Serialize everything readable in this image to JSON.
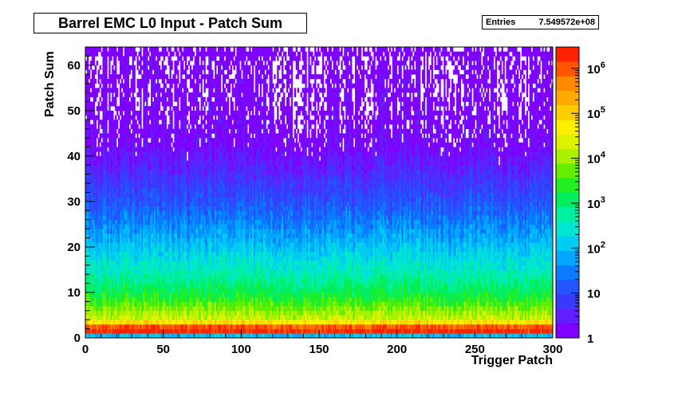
{
  "title": "Barrel EMC L0 Input - Patch Sum",
  "stats": {
    "label": "Entries",
    "value": "7.549572e+08"
  },
  "colors": {
    "palette": [
      "#7f00ff",
      "#5f1fff",
      "#3a3aff",
      "#2255ff",
      "#0a7aff",
      "#00a6ff",
      "#00ccf2",
      "#00e6d0",
      "#00f0a0",
      "#00ee60",
      "#22ee22",
      "#66ee00",
      "#a8f200",
      "#ddf200",
      "#ffee00",
      "#ffcc00",
      "#ffaa00",
      "#ff8800",
      "#ff5500",
      "#ff2200"
    ]
  },
  "chart_data": {
    "type": "heatmap",
    "title": "Barrel EMC L0 Input - Patch Sum",
    "xlabel": "Trigger Patch",
    "ylabel": "Patch Sum",
    "xlim": [
      0,
      300
    ],
    "ylim": [
      0,
      64
    ],
    "x_ticks": [
      0,
      50,
      100,
      150,
      200,
      250,
      300
    ],
    "y_ticks": [
      0,
      10,
      20,
      30,
      40,
      50,
      60
    ],
    "z_scale": "log",
    "zlim": [
      1,
      3000000
    ],
    "z_ticks": [
      1,
      10,
      100,
      1000,
      10000,
      100000,
      1000000
    ],
    "z_tick_labels": [
      "1",
      "10",
      "10^2",
      "10^3",
      "10^4",
      "10^5",
      "10^6"
    ],
    "profile_log10_counts_by_patch_sum": [
      {
        "y": 0,
        "log10": 2.0
      },
      {
        "y": 1,
        "log10": 6.3
      },
      {
        "y": 2,
        "log10": 6.0
      },
      {
        "y": 3,
        "log10": 4.8
      },
      {
        "y": 4,
        "log10": 4.2
      },
      {
        "y": 6,
        "log10": 3.8
      },
      {
        "y": 8,
        "log10": 3.4
      },
      {
        "y": 10,
        "log10": 3.1
      },
      {
        "y": 14,
        "log10": 2.6
      },
      {
        "y": 18,
        "log10": 2.2
      },
      {
        "y": 22,
        "log10": 1.8
      },
      {
        "y": 26,
        "log10": 1.4
      },
      {
        "y": 30,
        "log10": 1.05
      },
      {
        "y": 34,
        "log10": 0.75
      },
      {
        "y": 38,
        "log10": 0.45
      },
      {
        "y": 42,
        "log10": 0.2
      },
      {
        "y": 50,
        "log10": 0.05
      },
      {
        "y": 62,
        "log10": 0.0
      }
    ],
    "overflow_row": {
      "y": 62,
      "log10": 0.15
    },
    "grid": false,
    "legend": "right colorbar"
  }
}
